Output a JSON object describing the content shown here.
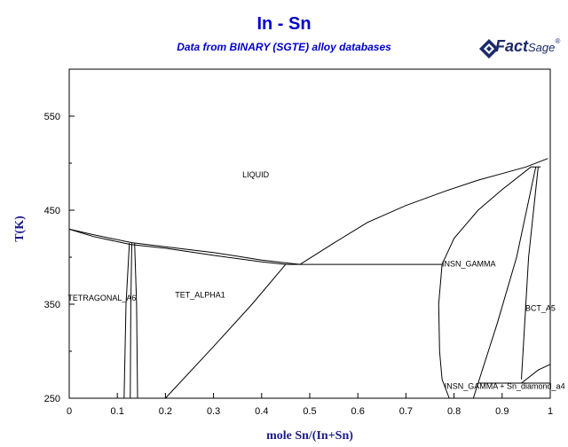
{
  "chart_data": {
    "type": "line",
    "title": "In - Sn",
    "subtitle": "Data from BINARY (SGTE) alloy databases",
    "xlabel": "mole Sn/(In+Sn)",
    "ylabel": "T(K)",
    "xlim": [
      0,
      1
    ],
    "ylim": [
      250,
      600
    ],
    "x_ticks": [
      "0",
      "0.1",
      "0.2",
      "0.3",
      "0.4",
      "0.5",
      "0.6",
      "0.7",
      "0.8",
      "0.9",
      "1"
    ],
    "y_ticks": [
      "250",
      "350",
      "450",
      "550"
    ],
    "grid": false,
    "logo": {
      "brand": "Fact",
      "suffix": "Sage",
      "mark": "®"
    },
    "region_labels": [
      {
        "text": "LIQUID",
        "x": 0.36,
        "y": 485
      },
      {
        "text": "TETRAGONAL_A6",
        "x": -0.003,
        "y": 354
      },
      {
        "text": "TET_ALPHA1",
        "x": 0.22,
        "y": 357
      },
      {
        "text": "INSN_GAMMA",
        "x": 0.775,
        "y": 390
      },
      {
        "text": "BCT_A5",
        "x": 0.948,
        "y": 343
      },
      {
        "text": "INSN_GAMMA + Sn_diamond_a4",
        "x": 0.78,
        "y": 260
      }
    ],
    "series": [
      {
        "id": "liquidus-in",
        "values": [
          [
            0,
            429.8
          ],
          [
            0.05,
            424
          ],
          [
            0.13,
            415.5
          ],
          [
            0.2,
            411
          ],
          [
            0.3,
            405
          ],
          [
            0.4,
            397
          ],
          [
            0.45,
            394
          ],
          [
            0.48,
            392.4
          ]
        ]
      },
      {
        "id": "solidus-in",
        "values": [
          [
            0,
            429.8
          ],
          [
            0.05,
            422
          ],
          [
            0.128,
            413.5
          ],
          [
            0.2,
            409.5
          ],
          [
            0.3,
            402
          ],
          [
            0.4,
            395
          ],
          [
            0.45,
            392.4
          ]
        ]
      },
      {
        "id": "liquidus-sn",
        "values": [
          [
            0.48,
            392.4
          ],
          [
            0.55,
            415
          ],
          [
            0.62,
            437
          ],
          [
            0.7,
            455
          ],
          [
            0.78,
            470
          ],
          [
            0.85,
            482
          ],
          [
            0.9,
            489
          ],
          [
            0.95,
            496
          ],
          [
            0.995,
            505
          ]
        ]
      },
      {
        "id": "eutectic-line",
        "values": [
          [
            0.45,
            392.4
          ],
          [
            0.775,
            392.4
          ]
        ]
      },
      {
        "id": "tet-a6-left-boundary",
        "values": [
          [
            0.125,
            415
          ],
          [
            0.118,
            350
          ],
          [
            0.114,
            250
          ]
        ]
      },
      {
        "id": "tet-a6-right-boundary",
        "values": [
          [
            0.13,
            415
          ],
          [
            0.128,
            350
          ],
          [
            0.127,
            250
          ]
        ]
      },
      {
        "id": "tet-alpha1-left-boundary",
        "values": [
          [
            0.136,
            415
          ],
          [
            0.14,
            350
          ],
          [
            0.142,
            250
          ]
        ]
      },
      {
        "id": "tet-alpha1-right-boundary",
        "values": [
          [
            0.2,
            250
          ],
          [
            0.3,
            305
          ],
          [
            0.38,
            350
          ],
          [
            0.45,
            392.4
          ]
        ]
      },
      {
        "id": "insn-gamma-left-boundary",
        "values": [
          [
            0.775,
            392.4
          ],
          [
            0.768,
            350
          ],
          [
            0.77,
            300
          ],
          [
            0.775,
            270
          ],
          [
            0.79,
            250
          ]
        ]
      },
      {
        "id": "insn-gamma-liquidus",
        "values": [
          [
            0.775,
            392.4
          ],
          [
            0.8,
            420
          ],
          [
            0.85,
            450
          ],
          [
            0.9,
            472
          ],
          [
            0.96,
            496
          ]
        ]
      },
      {
        "id": "insn-gamma-right-boundary",
        "values": [
          [
            0.97,
            496
          ],
          [
            0.93,
            400
          ],
          [
            0.89,
            330
          ],
          [
            0.84,
            250
          ]
        ]
      },
      {
        "id": "bct-a5-solidus",
        "values": [
          [
            0.975,
            496
          ],
          [
            0.955,
            400
          ],
          [
            0.94,
            270
          ]
        ]
      },
      {
        "id": "peritectic-line",
        "values": [
          [
            0.96,
            496
          ],
          [
            0.98,
            496
          ]
        ]
      },
      {
        "id": "diamond-line",
        "values": [
          [
            0.85,
            266
          ],
          [
            1,
            266
          ]
        ]
      },
      {
        "id": "bct-a5-corner",
        "values": [
          [
            0.94,
            266
          ],
          [
            0.975,
            280
          ],
          [
            1,
            286
          ]
        ]
      }
    ]
  }
}
